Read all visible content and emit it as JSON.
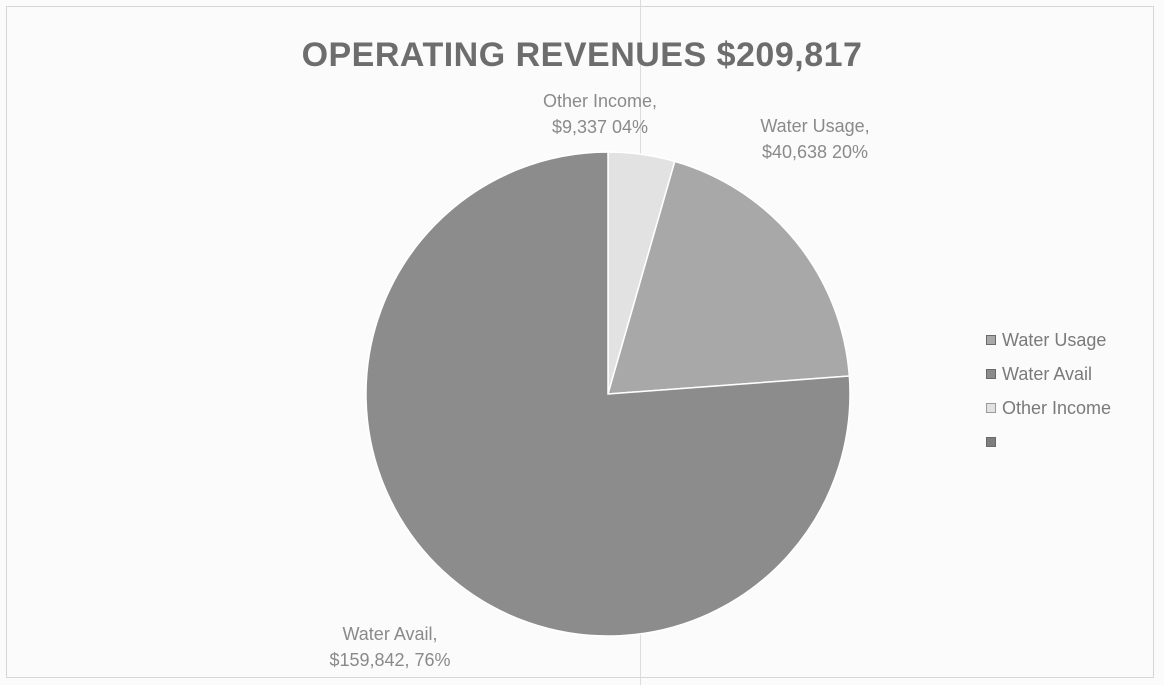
{
  "chart_data": {
    "type": "pie",
    "title": "OPERATING REVENUES $209,817",
    "slices": [
      {
        "name": "Water Usage",
        "value": 40638,
        "percent_label": "20%",
        "label_line1": "Water Usage,",
        "label_line2": "$40,638 20%",
        "color": "#a8a8a8"
      },
      {
        "name": "Water Avail",
        "value": 159842,
        "percent_label": "76%",
        "label_line1": "Water Avail,",
        "label_line2": "$159,842, 76%",
        "color": "#8c8c8c"
      },
      {
        "name": "Other Income",
        "value": 9337,
        "percent_label": "04%",
        "label_line1": "Other Income,",
        "label_line2": "$9,337 04%",
        "color": "#e2e2e2"
      }
    ],
    "legend": {
      "position": "right",
      "items": [
        "Water Usage",
        "Water Avail",
        "Other Income",
        ""
      ]
    }
  }
}
